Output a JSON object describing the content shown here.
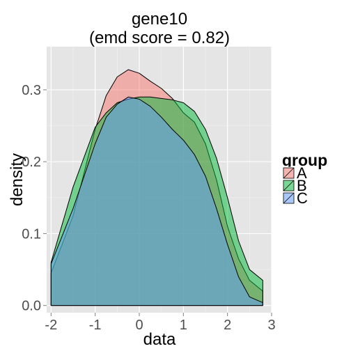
{
  "chart_data": {
    "type": "area",
    "title_lines": [
      "gene10",
      "(emd score = 0.82)"
    ],
    "xlabel": "data",
    "ylabel": "density",
    "xlim": [
      -2.1,
      3.0
    ],
    "ylim": [
      -0.01,
      0.36
    ],
    "x_ticks": [
      -2,
      -1,
      0,
      1,
      2,
      3
    ],
    "y_ticks": [
      0.0,
      0.1,
      0.2,
      0.3
    ],
    "x_tick_labels": [
      "-2",
      "-1",
      "0",
      "1",
      "2",
      "3"
    ],
    "y_tick_labels": [
      "0.0",
      "0.1",
      "0.2",
      "0.3"
    ],
    "grid": true,
    "background_color": "#e5e5e5",
    "legend": {
      "title": "group",
      "position": "right"
    },
    "series": [
      {
        "name": "A",
        "color": "#f8766d",
        "x": [
          -2.0,
          -1.5,
          -1.0,
          -0.75,
          -0.5,
          -0.25,
          0.0,
          0.25,
          0.5,
          0.75,
          1.0,
          1.25,
          1.5,
          1.75,
          2.0,
          2.25,
          2.5,
          2.8
        ],
        "y": [
          0.045,
          0.125,
          0.245,
          0.292,
          0.318,
          0.328,
          0.323,
          0.312,
          0.302,
          0.288,
          0.268,
          0.255,
          0.225,
          0.175,
          0.11,
          0.065,
          0.035,
          0.02
        ]
      },
      {
        "name": "B",
        "color": "#00ba38",
        "x": [
          -2.0,
          -1.5,
          -1.0,
          -0.75,
          -0.5,
          -0.25,
          0.0,
          0.25,
          0.5,
          0.75,
          1.0,
          1.25,
          1.5,
          1.75,
          2.0,
          2.25,
          2.5,
          2.8
        ],
        "y": [
          0.06,
          0.165,
          0.248,
          0.268,
          0.282,
          0.287,
          0.29,
          0.29,
          0.288,
          0.286,
          0.282,
          0.27,
          0.245,
          0.205,
          0.15,
          0.09,
          0.05,
          0.035
        ]
      },
      {
        "name": "C",
        "color": "#619cff",
        "x": [
          -2.0,
          -1.5,
          -1.0,
          -0.75,
          -0.5,
          -0.25,
          0.0,
          0.25,
          0.5,
          0.75,
          1.0,
          1.25,
          1.5,
          1.75,
          2.0,
          2.25,
          2.5,
          2.8
        ],
        "y": [
          0.058,
          0.135,
          0.225,
          0.262,
          0.28,
          0.29,
          0.287,
          0.277,
          0.262,
          0.245,
          0.23,
          0.21,
          0.18,
          0.135,
          0.085,
          0.04,
          0.012,
          0.004
        ]
      }
    ]
  }
}
